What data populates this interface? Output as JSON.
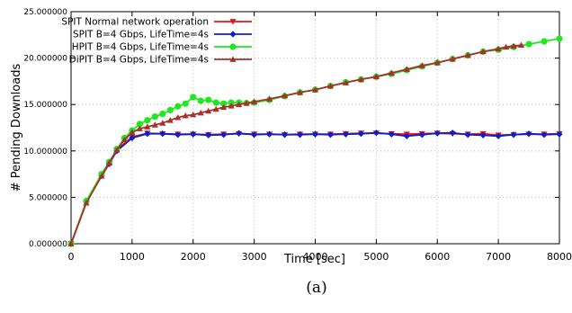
{
  "caption": "(a)",
  "chart_data": {
    "type": "line",
    "xlabel": "Time [sec]",
    "ylabel": "# Pending Downloads",
    "xlim": [
      0,
      8000
    ],
    "ylim": [
      0,
      25
    ],
    "x_ticks": [
      0,
      1000,
      2000,
      3000,
      4000,
      5000,
      6000,
      7000,
      8000
    ],
    "y_ticks": [
      0,
      5,
      10,
      15,
      20,
      25
    ],
    "x_tick_labels": [
      "0",
      "1000",
      "2000",
      "3000",
      "4000",
      "5000",
      "6000",
      "7000",
      "8000"
    ],
    "y_tick_labels": [
      "0.000000",
      "5.000000",
      "10.000000",
      "15.000000",
      "20.000000",
      "25.000000"
    ],
    "grid": true,
    "legend_position": "top-left",
    "series": [
      {
        "name": "SPIT Normal network operation",
        "color": "#e8141c",
        "marker": "triangle-down",
        "x": [
          0,
          250,
          500,
          625,
          750,
          1000,
          1250,
          1500,
          1750,
          2000,
          2250,
          2500,
          2750,
          3000,
          3250,
          3500,
          3750,
          4000,
          4250,
          4500,
          4750,
          5000,
          5250,
          5500,
          5750,
          6000,
          6250,
          6500,
          6750,
          7000,
          7250,
          7500,
          7750,
          8000
        ],
        "y": [
          0,
          4.5,
          7.4,
          8.7,
          10.1,
          11.5,
          11.9,
          11.85,
          11.8,
          11.8,
          11.75,
          11.8,
          11.85,
          11.8,
          11.8,
          11.75,
          11.8,
          11.8,
          11.8,
          11.85,
          11.9,
          11.9,
          11.85,
          11.8,
          11.85,
          11.9,
          11.85,
          11.8,
          11.85,
          11.7,
          11.75,
          11.8,
          11.8,
          11.85
        ]
      },
      {
        "name": "SPIT B=4 Gbps, LifeTime=4s",
        "color": "#0a20c8",
        "marker": "diamond",
        "x": [
          0,
          250,
          500,
          625,
          750,
          1000,
          1250,
          1500,
          1750,
          2000,
          2250,
          2500,
          2750,
          3000,
          3250,
          3500,
          3750,
          4000,
          4250,
          4500,
          4750,
          5000,
          5250,
          5500,
          5750,
          6000,
          6250,
          6500,
          6750,
          7000,
          7250,
          7500,
          7750,
          8000
        ],
        "y": [
          0,
          4.5,
          7.3,
          8.6,
          10.0,
          11.4,
          11.85,
          11.85,
          11.75,
          11.8,
          11.7,
          11.75,
          11.9,
          11.75,
          11.8,
          11.75,
          11.75,
          11.8,
          11.75,
          11.8,
          11.85,
          11.95,
          11.8,
          11.6,
          11.75,
          11.9,
          11.95,
          11.75,
          11.7,
          11.6,
          11.75,
          11.85,
          11.75,
          11.8
        ]
      },
      {
        "name": "HPIT B=4 Gbps, LifeTime=4s",
        "color": "#1ee81e",
        "marker": "circle",
        "x": [
          0,
          250,
          500,
          625,
          750,
          875,
          1000,
          1125,
          1250,
          1375,
          1500,
          1625,
          1750,
          1875,
          2000,
          2125,
          2250,
          2375,
          2500,
          2625,
          2750,
          2875,
          3000,
          3250,
          3500,
          3750,
          4000,
          4250,
          4500,
          4750,
          5000,
          5250,
          5500,
          5750,
          6000,
          6250,
          6500,
          6750,
          7000,
          7250,
          7500,
          7750,
          8000
        ],
        "y": [
          0,
          4.6,
          7.5,
          8.8,
          10.2,
          11.4,
          12.2,
          12.9,
          13.3,
          13.7,
          14.0,
          14.4,
          14.8,
          15.1,
          15.8,
          15.4,
          15.5,
          15.2,
          15.1,
          15.2,
          15.2,
          15.15,
          15.2,
          15.5,
          15.9,
          16.3,
          16.6,
          17.0,
          17.4,
          17.7,
          18.0,
          18.3,
          18.7,
          19.1,
          19.5,
          19.9,
          20.3,
          20.7,
          20.9,
          21.2,
          21.5,
          21.8,
          22.1
        ]
      },
      {
        "name": "DiPIT B=4 Gbps, LifeTime=4s",
        "color": "#a8302c",
        "marker": "triangle-up",
        "x": [
          0,
          250,
          500,
          625,
          750,
          875,
          1000,
          1125,
          1250,
          1375,
          1500,
          1625,
          1750,
          1875,
          2000,
          2125,
          2250,
          2375,
          2500,
          2625,
          2750,
          2875,
          3000,
          3250,
          3500,
          3750,
          4000,
          4250,
          4500,
          4750,
          5000,
          5250,
          5500,
          5750,
          6000,
          6250,
          6500,
          6750,
          7000,
          7125,
          7250,
          7375
        ],
        "y": [
          0,
          4.4,
          7.3,
          8.7,
          10.1,
          11.2,
          12.0,
          12.4,
          12.6,
          12.8,
          13.0,
          13.3,
          13.6,
          13.8,
          13.9,
          14.1,
          14.3,
          14.5,
          14.7,
          14.85,
          15.0,
          15.15,
          15.3,
          15.6,
          15.95,
          16.3,
          16.6,
          17.0,
          17.35,
          17.7,
          18.0,
          18.4,
          18.8,
          19.2,
          19.5,
          19.9,
          20.3,
          20.7,
          21.0,
          21.2,
          21.3,
          21.4
        ]
      }
    ]
  }
}
